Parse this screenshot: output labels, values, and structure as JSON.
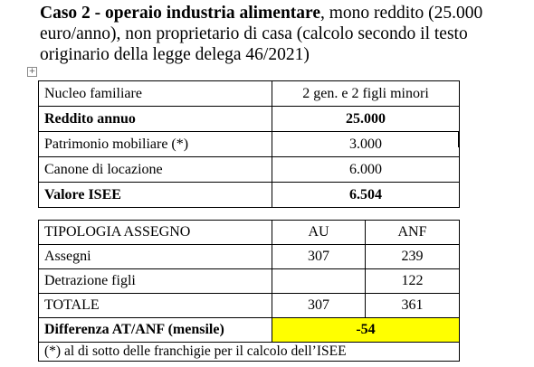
{
  "intro": {
    "bold_part": "Caso 2 - operaio industria alimentare",
    "rest_part": ", mono reddito (25.000 euro/anno), non proprietario di casa (calcolo secondo il testo originario della legge delega 46/2021)"
  },
  "handle_icon": "+",
  "table1": {
    "rows": [
      {
        "label": "Nucleo familiare",
        "value": "2 gen. e 2 figli minori",
        "bold": false
      },
      {
        "label": "Reddito annuo",
        "value": "25.000",
        "bold": true
      },
      {
        "label": "Patrimonio mobiliare (*)",
        "value": "3.000",
        "bold": false
      },
      {
        "label": "Canone di locazione",
        "value": "6.000",
        "bold": false
      },
      {
        "label": "Valore ISEE",
        "value": "6.504",
        "bold": true
      }
    ]
  },
  "table2": {
    "header": {
      "label": "TIPOLOGIA ASSEGNO",
      "au": "AU",
      "anf": "ANF"
    },
    "rows": [
      {
        "label": "Assegni",
        "au": "307",
        "anf": "239"
      },
      {
        "label": "Detrazione figli",
        "au": "",
        "anf": "122"
      },
      {
        "label": "TOTALE",
        "au": "307",
        "anf": "361"
      }
    ],
    "difference": {
      "label": "Differenza AT/ANF (mensile)",
      "value": "-54",
      "highlight_color": "#ffff00"
    },
    "note": "(*) al di sotto delle franchigie per il calcolo dell’ISEE"
  }
}
